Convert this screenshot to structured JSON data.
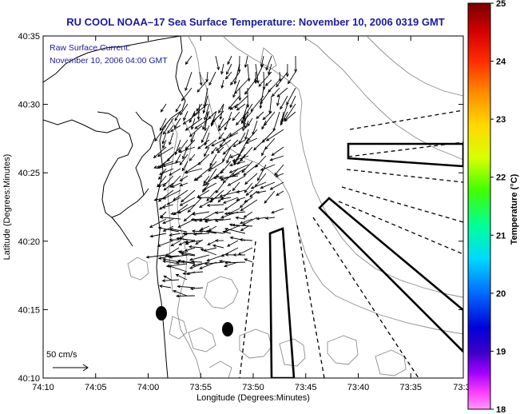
{
  "title": "RU COOL  NOAA–17  Sea Surface Temperature:  November 10, 2006 0319 GMT",
  "annotation": {
    "line1": "Raw Surface Current:",
    "line2": "November 10, 2006 04:00 GMT"
  },
  "x_axis": {
    "label": "Longitude (Degrees:Minutes)",
    "ticks": [
      "74:10",
      "74:05",
      "74:00",
      "73:55",
      "73:50",
      "73:45",
      "73:40",
      "73:35",
      "73:3"
    ]
  },
  "y_axis": {
    "label": "Latitude (Degrees:Minutes)",
    "ticks": [
      "40:35",
      "40:30",
      "40:25",
      "40:20",
      "40:15",
      "40:10"
    ]
  },
  "colorbar": {
    "label": "Temperature (°C)",
    "ticks": [
      "25",
      "24",
      "23",
      "22",
      "21",
      "20",
      "19",
      "18"
    ],
    "stops": [
      "#7a0000",
      "#d40000",
      "#ff2a00",
      "#ff8c00",
      "#ffd800",
      "#d9ff00",
      "#40ff00",
      "#00ff9a",
      "#00d8ff",
      "#0070ff",
      "#0000d8",
      "#3c00c8",
      "#a000ff",
      "#ff40ff",
      "#ff9aff"
    ]
  },
  "scale_label": "50 cm/s",
  "colors": {
    "title": "#1a1aa0",
    "coast": "#000000",
    "bathymetry": "#8c8c8c",
    "background": "#ffffff"
  }
}
